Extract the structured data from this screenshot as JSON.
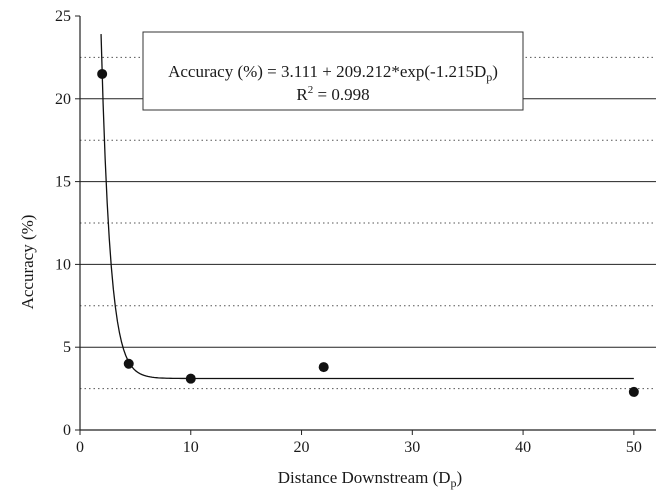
{
  "chart_data": {
    "type": "scatter",
    "xlabel": "Distance Downstream (D",
    "xlabel_sub": "p",
    "xlabel_close": ")",
    "ylabel": "Accuracy (%)",
    "xlim": [
      0,
      52
    ],
    "ylim": [
      0,
      25
    ],
    "x_ticks": [
      0,
      10,
      20,
      30,
      40,
      50
    ],
    "y_ticks": [
      0,
      5,
      10,
      15,
      20,
      25
    ],
    "grid": {
      "major_solid": [
        5,
        10,
        15,
        20
      ],
      "minor_dotted": [
        2.5,
        7.5,
        12.5,
        17.5,
        22.5
      ]
    },
    "points": [
      {
        "x": 2,
        "y": 21.5
      },
      {
        "x": 4.4,
        "y": 4.0
      },
      {
        "x": 10,
        "y": 3.1
      },
      {
        "x": 22,
        "y": 3.8
      },
      {
        "x": 50,
        "y": 2.3
      }
    ],
    "fit": {
      "a": 3.111,
      "b": 209.212,
      "c": -1.215,
      "x_start": 1.9,
      "x_end": 50
    },
    "equation_main": "Accuracy (%) = 3.111 + 209.212*exp(-1.215D",
    "equation_sub": "p",
    "equation_close": ")",
    "r2_prefix": "R",
    "r2_sup": "2",
    "r2_suffix": " = 0.998",
    "legend_placement": "top-right"
  }
}
